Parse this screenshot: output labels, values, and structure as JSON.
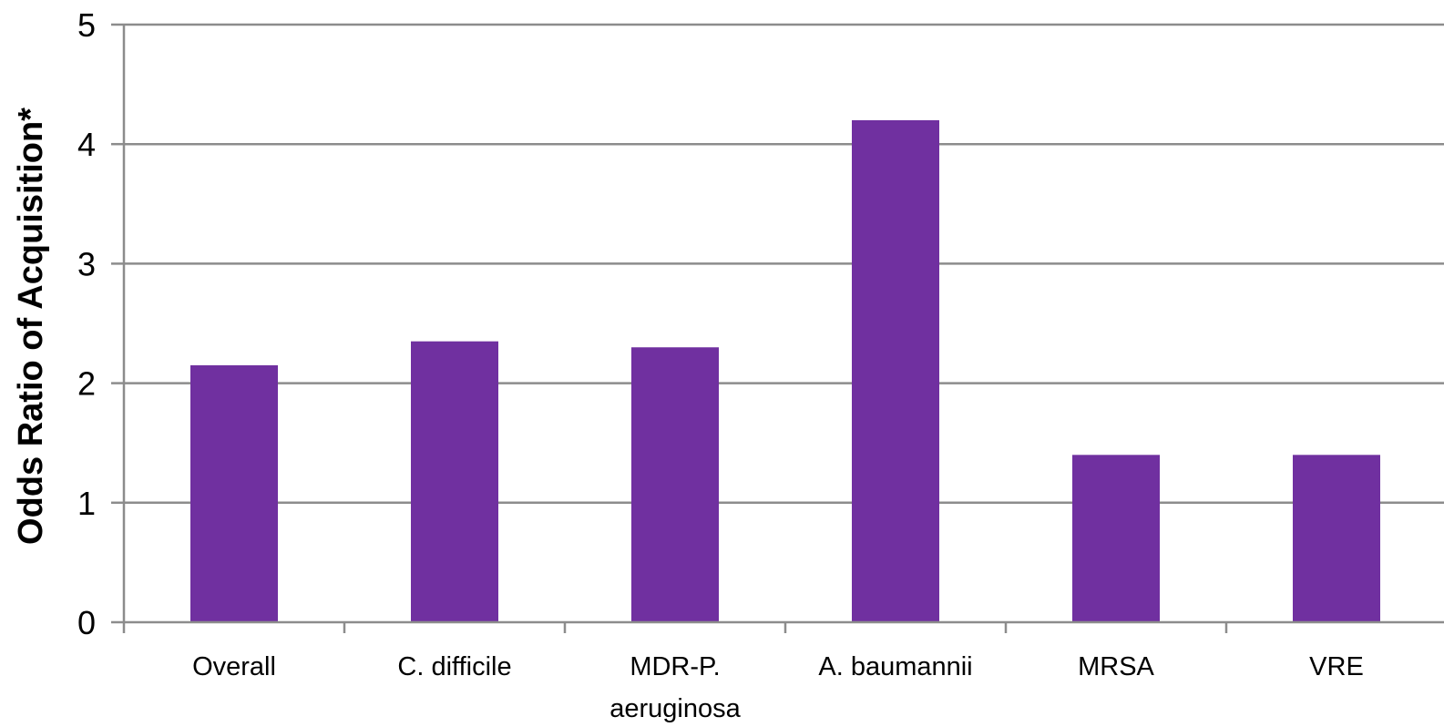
{
  "chart_data": {
    "type": "bar",
    "title": "",
    "xlabel": "",
    "ylabel": "Odds Ratio of Acquisition*",
    "ylim": [
      0,
      5
    ],
    "yticks": [
      0,
      1,
      2,
      3,
      4,
      5
    ],
    "grid": true,
    "legend": "none",
    "categories": [
      [
        "Overall"
      ],
      [
        "C. difficile"
      ],
      [
        "MDR-P.",
        "aeruginosa"
      ],
      [
        "A. baumannii"
      ],
      [
        "MRSA"
      ],
      [
        "VRE"
      ]
    ],
    "values": [
      2.15,
      2.35,
      2.3,
      4.2,
      1.4,
      1.4
    ],
    "colors": {
      "bar": "#7030a0",
      "grid": "#8c8c8c",
      "axis": "#8c8c8c",
      "text": "#000000"
    }
  }
}
